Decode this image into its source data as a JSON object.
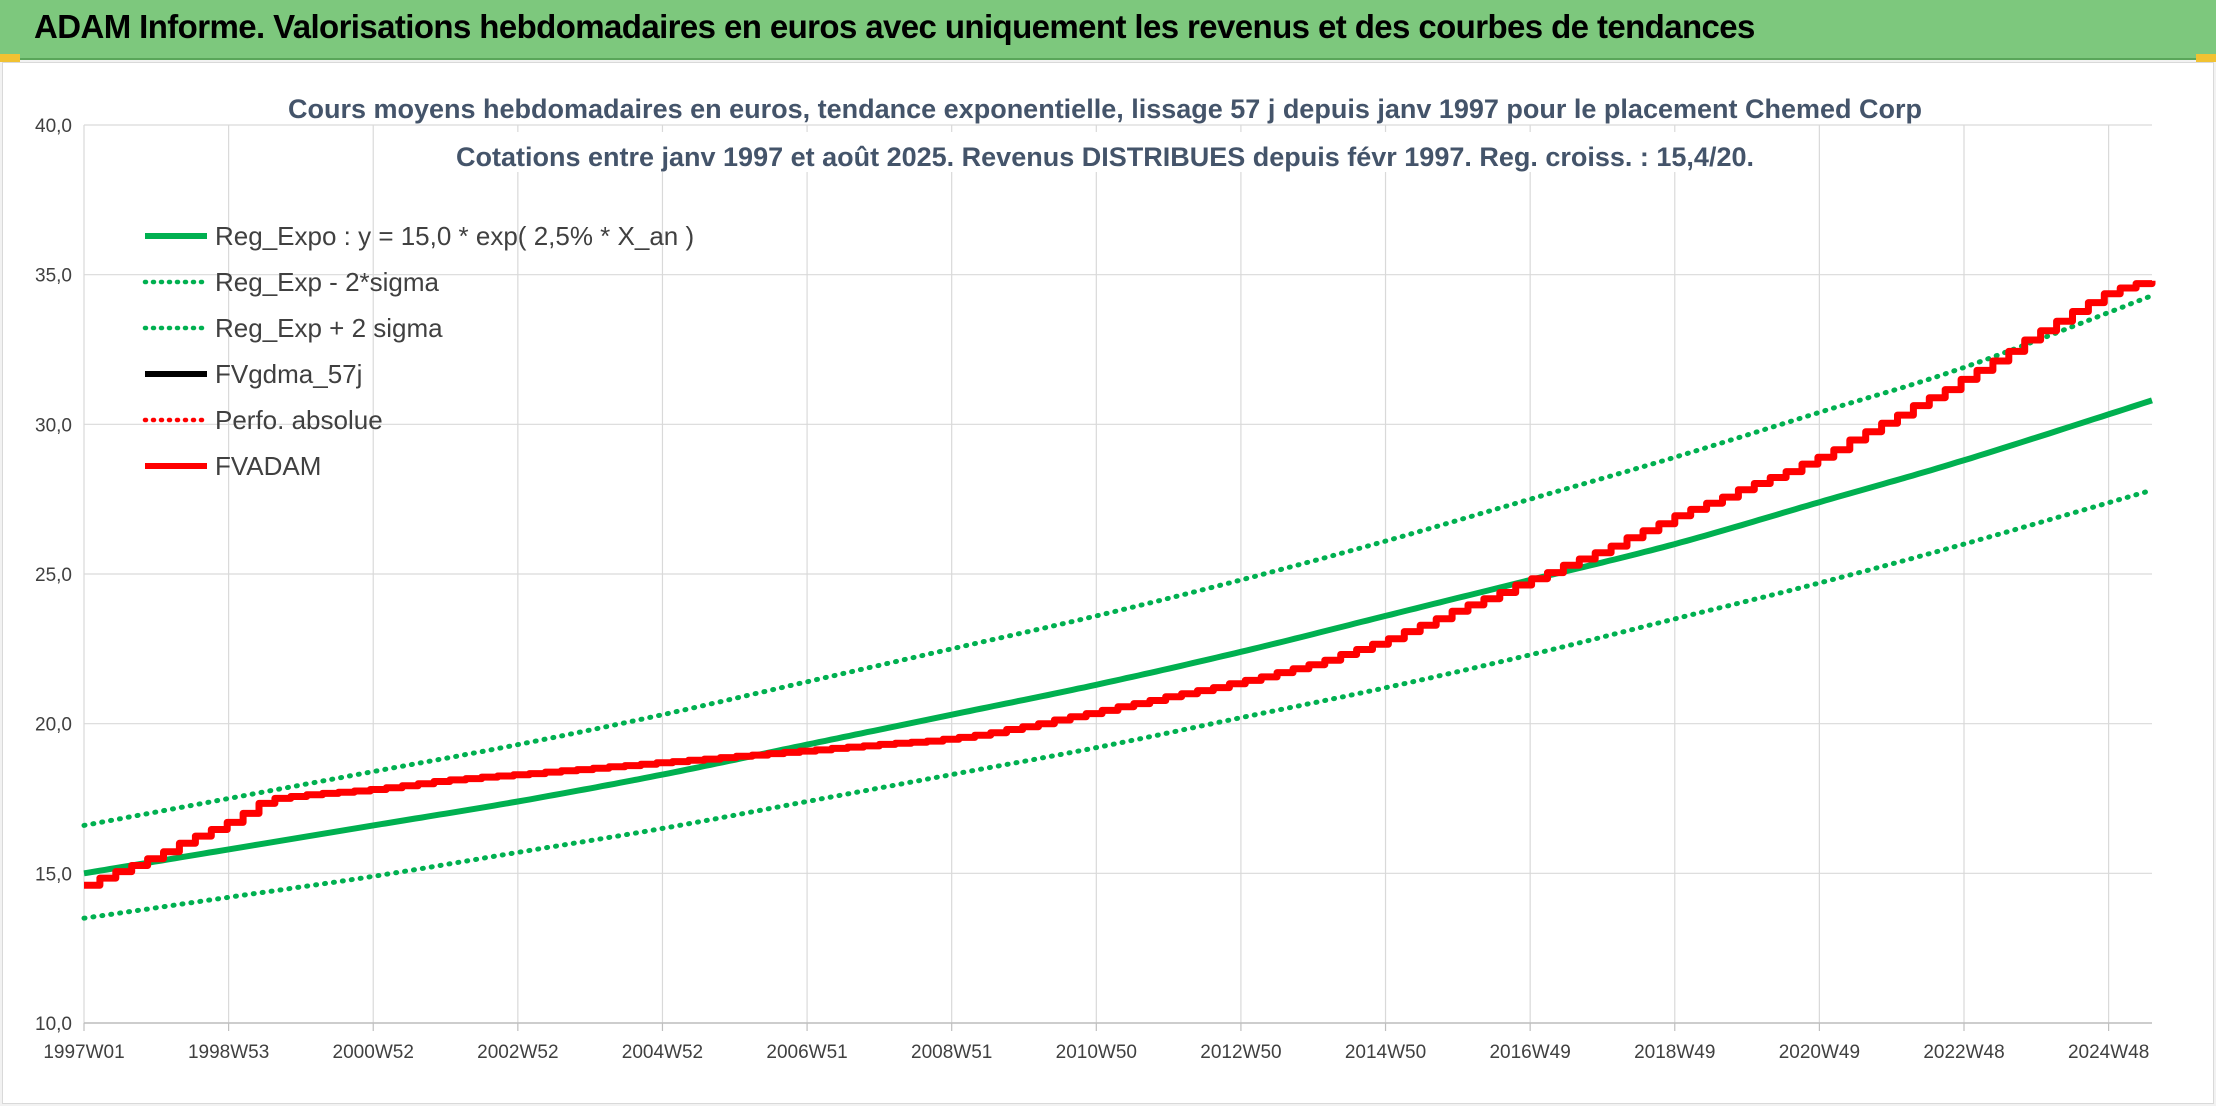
{
  "header": {
    "title": "ADAM Informe. Valorisations hebdomadaires en euros avec uniquement les revenus et des courbes de tendances"
  },
  "chart_data": {
    "type": "line",
    "title_line1": "Cours moyens hebdomadaires en euros, tendance exponentielle, lissage 57 j depuis janv 1997 pour le placement Chemed Corp",
    "title_line2": "Cotations entre janv 1997 et août 2025. Revenus DISTRIBUES depuis févr 1997. Reg. croiss. : 15,4/20.",
    "xlabel": "",
    "ylabel": "",
    "x_range_years": [
      1997.0,
      2025.6
    ],
    "ylim": [
      10,
      40
    ],
    "y_ticks": [
      "10,0",
      "15,0",
      "20,0",
      "25,0",
      "30,0",
      "35,0",
      "40,0"
    ],
    "x_ticks": [
      "1997W01",
      "1998W53",
      "2000W52",
      "2002W52",
      "2004W52",
      "2006W51",
      "2008W51",
      "2010W50",
      "2012W50",
      "2014W50",
      "2016W49",
      "2018W49",
      "2020W49",
      "2022W48",
      "2024W48"
    ],
    "x_tick_years": [
      1997.0,
      1999.0,
      2001.0,
      2003.0,
      2005.0,
      2007.0,
      2009.0,
      2011.0,
      2013.0,
      2015.0,
      2017.0,
      2019.0,
      2021.0,
      2023.0,
      2025.0
    ],
    "grid": true,
    "legend_position": "top-left",
    "series": [
      {
        "name": "Reg_Expo : y = 15,0 * exp( 2,5% *  X_an )",
        "color": "#00b050",
        "style": "solid",
        "x": [
          1997.0,
          1999.0,
          2001.0,
          2003.0,
          2005.0,
          2007.0,
          2009.0,
          2011.0,
          2013.0,
          2015.0,
          2017.0,
          2019.0,
          2021.0,
          2023.0,
          2025.6
        ],
        "y": [
          15.0,
          15.8,
          16.6,
          17.4,
          18.3,
          19.3,
          20.3,
          21.3,
          22.4,
          23.6,
          24.8,
          26.0,
          27.4,
          28.8,
          30.8
        ]
      },
      {
        "name": "Reg_Exp - 2*sigma",
        "color": "#00b050",
        "style": "dotted",
        "x": [
          1997.0,
          1999.0,
          2001.0,
          2003.0,
          2005.0,
          2007.0,
          2009.0,
          2011.0,
          2013.0,
          2015.0,
          2017.0,
          2019.0,
          2021.0,
          2023.0,
          2025.6
        ],
        "y": [
          13.5,
          14.2,
          14.9,
          15.7,
          16.5,
          17.4,
          18.3,
          19.2,
          20.2,
          21.2,
          22.3,
          23.5,
          24.7,
          26.0,
          27.8
        ]
      },
      {
        "name": "Reg_Exp + 2 sigma",
        "color": "#00b050",
        "style": "dotted",
        "x": [
          1997.0,
          1999.0,
          2001.0,
          2003.0,
          2005.0,
          2007.0,
          2009.0,
          2011.0,
          2013.0,
          2015.0,
          2017.0,
          2019.0,
          2021.0,
          2023.0,
          2025.6
        ],
        "y": [
          16.6,
          17.5,
          18.4,
          19.3,
          20.3,
          21.4,
          22.5,
          23.6,
          24.8,
          26.1,
          27.5,
          28.9,
          30.4,
          31.9,
          34.3
        ]
      },
      {
        "name": "FVgdma_57j",
        "color": "#000000",
        "style": "solid",
        "x": [],
        "y": []
      },
      {
        "name": "Perfo. absolue",
        "color": "#ff0000",
        "style": "dotted",
        "x": [],
        "y": []
      },
      {
        "name": "FVADAM",
        "color": "#ff0000",
        "style": "solid",
        "x": [
          1997.0,
          1997.5,
          1998.0,
          1998.5,
          1999.0,
          1999.5,
          2000.0,
          2001.0,
          2002.0,
          2003.0,
          2004.0,
          2005.0,
          2006.0,
          2007.0,
          2008.0,
          2009.0,
          2010.0,
          2011.0,
          2012.0,
          2013.0,
          2014.0,
          2015.0,
          2016.0,
          2017.0,
          2018.0,
          2019.0,
          2020.0,
          2021.0,
          2022.0,
          2023.0,
          2024.0,
          2025.0,
          2025.6
        ],
        "y": [
          14.6,
          15.1,
          15.6,
          16.2,
          16.7,
          17.4,
          17.6,
          17.8,
          18.1,
          18.3,
          18.5,
          18.7,
          18.9,
          19.1,
          19.3,
          19.5,
          19.9,
          20.4,
          20.9,
          21.4,
          22.0,
          22.8,
          23.8,
          24.8,
          25.8,
          26.9,
          27.9,
          28.9,
          30.2,
          31.5,
          33.0,
          34.4,
          34.8
        ]
      }
    ]
  }
}
